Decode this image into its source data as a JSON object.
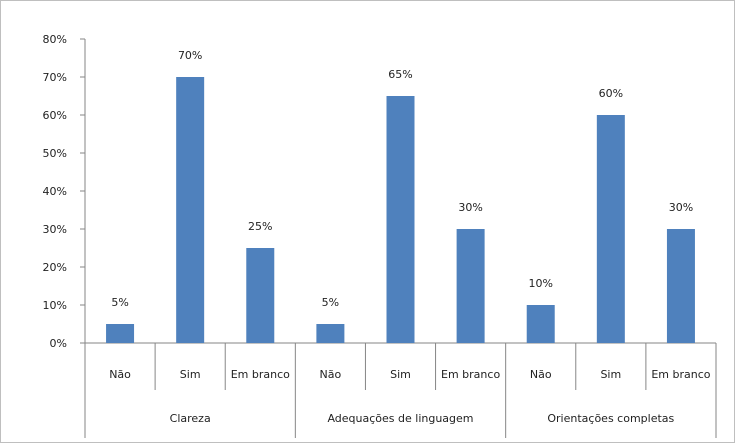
{
  "chart_data": {
    "type": "bar",
    "title": "",
    "xlabel": "",
    "ylabel": "",
    "ylim": [
      0,
      80
    ],
    "y_ticks": [
      "0%",
      "10%",
      "20%",
      "30%",
      "40%",
      "50%",
      "60%",
      "70%",
      "80%"
    ],
    "grid": false,
    "legend": "none",
    "bar_color": "#4f81bd",
    "groups": [
      {
        "label": "Clareza",
        "categories": [
          "Não",
          "Sim",
          "Em branco"
        ],
        "values": [
          5,
          70,
          25
        ],
        "data_labels": [
          "5%",
          "70%",
          "25%"
        ]
      },
      {
        "label": "Adequações de linguagem",
        "categories": [
          "Não",
          "Sim",
          "Em branco"
        ],
        "values": [
          5,
          65,
          30
        ],
        "data_labels": [
          "5%",
          "65%",
          "30%"
        ]
      },
      {
        "label": "Orientações completas",
        "categories": [
          "Não",
          "Sim",
          "Em branco"
        ],
        "values": [
          10,
          60,
          30
        ],
        "data_labels": [
          "10%",
          "60%",
          "30%"
        ]
      }
    ]
  }
}
